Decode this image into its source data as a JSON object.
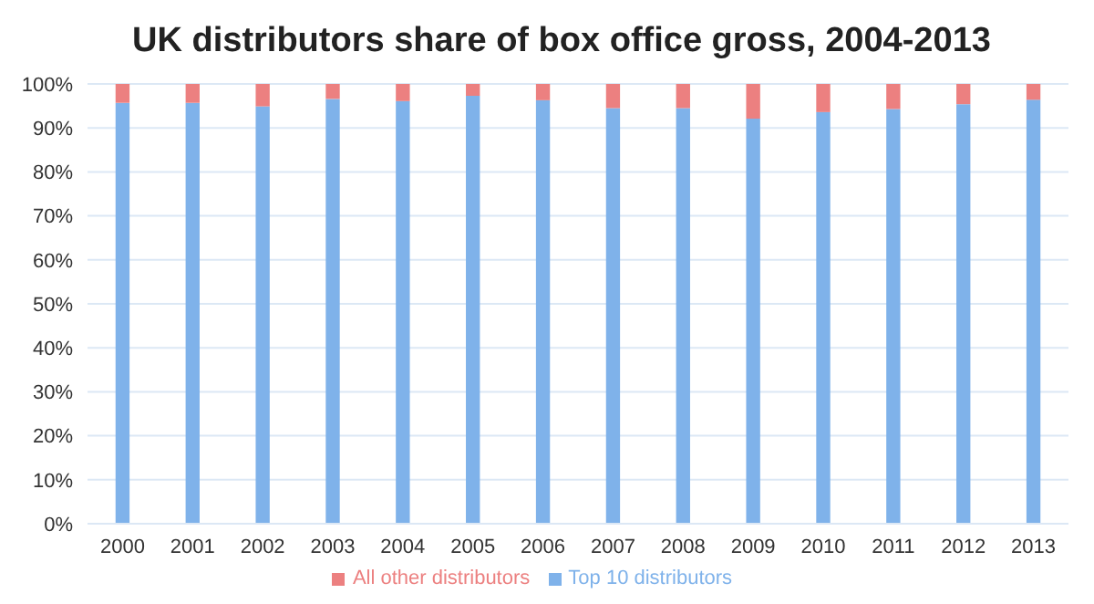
{
  "chart_data": {
    "type": "bar",
    "title": "UK distributors share of box office gross, 2004-2013",
    "categories": [
      "2000",
      "2001",
      "2002",
      "2003",
      "2004",
      "2005",
      "2006",
      "2007",
      "2008",
      "2009",
      "2010",
      "2011",
      "2012",
      "2013"
    ],
    "stacked": true,
    "series": [
      {
        "name": "Top 10 distributors",
        "color": "#7fb2ea",
        "values": [
          95.7,
          95.7,
          94.9,
          96.6,
          96.1,
          97.3,
          96.3,
          94.5,
          94.5,
          92.1,
          93.6,
          94.3,
          95.4,
          96.4
        ]
      },
      {
        "name": "All other distributors",
        "color": "#ec8080",
        "values": [
          4.3,
          4.3,
          5.1,
          3.4,
          3.9,
          2.7,
          3.7,
          5.5,
          5.5,
          7.9,
          6.4,
          5.7,
          4.6,
          3.6
        ]
      }
    ],
    "ylim": [
      0,
      100
    ],
    "yticks": [
      {
        "value": 0,
        "label": "0%"
      },
      {
        "value": 10,
        "label": "10%"
      },
      {
        "value": 20,
        "label": "20%"
      },
      {
        "value": 30,
        "label": "30%"
      },
      {
        "value": 40,
        "label": "40%"
      },
      {
        "value": 50,
        "label": "50%"
      },
      {
        "value": 60,
        "label": "60%"
      },
      {
        "value": 70,
        "label": "70%"
      },
      {
        "value": 80,
        "label": "80%"
      },
      {
        "value": 90,
        "label": "90%"
      },
      {
        "value": 100,
        "label": "100%"
      }
    ],
    "grid": "y",
    "legend": "bottom"
  }
}
